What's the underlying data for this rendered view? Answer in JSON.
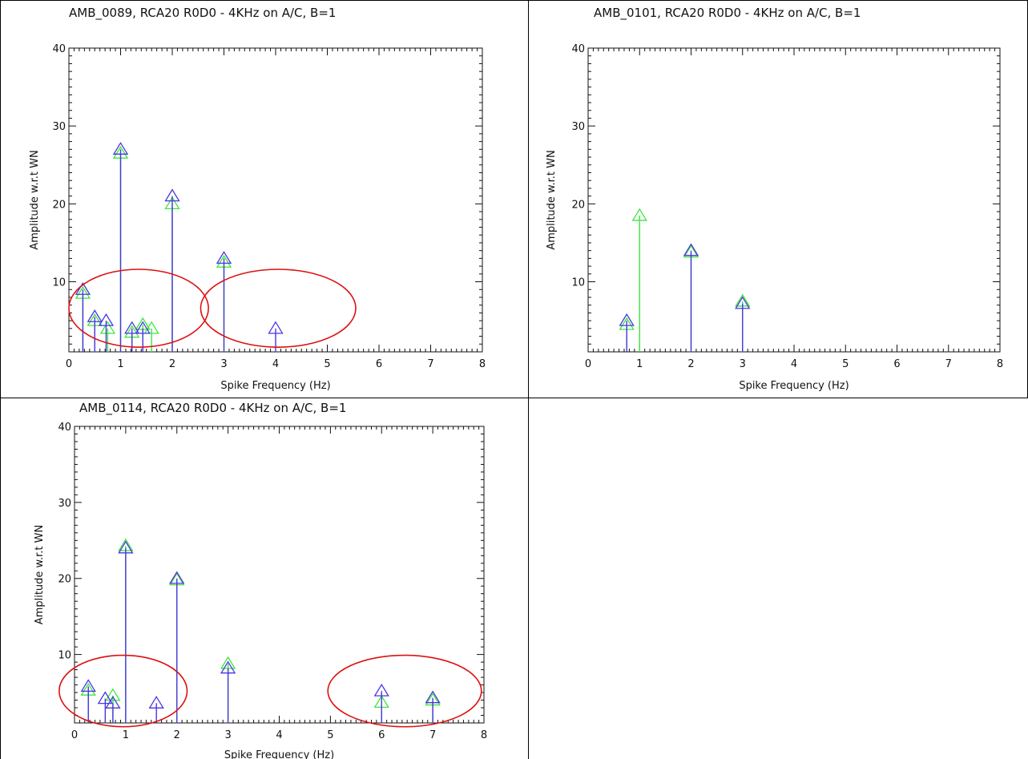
{
  "colors": {
    "series_blue": "#4a36e0",
    "series_green": "#3ee63e",
    "annotation_red": "#dd1111",
    "axis": "#111111"
  },
  "chart_data": [
    {
      "type": "stem",
      "title": "AMB_0089, RCA20 R0D0 - 4KHz on A/C, B=1",
      "xlabel": "Spike Frequency (Hz)",
      "ylabel": "Amplitude w.r.t WN",
      "xlim": [
        0,
        8
      ],
      "ylim": [
        1,
        40
      ],
      "xticks": [
        "0",
        "1",
        "2",
        "3",
        "4",
        "5",
        "6",
        "7",
        "8"
      ],
      "yticks": [
        "10",
        "20",
        "30",
        "40"
      ],
      "marker": "triangle",
      "series": [
        {
          "color": "#4a36e0",
          "points": [
            [
              0.27,
              9
            ],
            [
              0.5,
              5.5
            ],
            [
              0.72,
              5
            ],
            [
              1.0,
              27
            ],
            [
              1.22,
              4
            ],
            [
              1.43,
              4
            ],
            [
              2.0,
              21
            ],
            [
              3.0,
              13
            ],
            [
              4.0,
              4
            ]
          ]
        },
        {
          "color": "#3ee63e",
          "points": [
            [
              0.27,
              8.5
            ],
            [
              0.5,
              5
            ],
            [
              0.75,
              4
            ],
            [
              1.0,
              26.5
            ],
            [
              1.22,
              3.5
            ],
            [
              1.43,
              4.5
            ],
            [
              1.6,
              4
            ],
            [
              2.0,
              20
            ],
            [
              3.0,
              12.5
            ]
          ]
        }
      ],
      "annotations": [
        {
          "shape": "ellipse",
          "color": "#dd1111",
          "cx": 1.35,
          "cy": 6.6,
          "rx": 1.35,
          "ry": 5.0
        },
        {
          "shape": "ellipse",
          "color": "#dd1111",
          "cx": 4.05,
          "cy": 6.6,
          "rx": 1.5,
          "ry": 5.0
        }
      ]
    },
    {
      "type": "stem",
      "title": "AMB_0101, RCA20 R0D0 - 4KHz on A/C, B=1",
      "xlabel": "Spike Frequency (Hz)",
      "ylabel": "Amplitude w.r.t WN",
      "xlim": [
        0,
        8
      ],
      "ylim": [
        1,
        40
      ],
      "xticks": [
        "0",
        "1",
        "2",
        "3",
        "4",
        "5",
        "6",
        "7",
        "8"
      ],
      "yticks": [
        "10",
        "20",
        "30",
        "40"
      ],
      "marker": "triangle",
      "series": [
        {
          "color": "#4a36e0",
          "points": [
            [
              0.75,
              5
            ],
            [
              2.0,
              14
            ],
            [
              3.0,
              7.2
            ]
          ]
        },
        {
          "color": "#3ee63e",
          "points": [
            [
              0.75,
              4.5
            ],
            [
              1.0,
              18.5
            ],
            [
              2.0,
              13.8
            ],
            [
              3.0,
              7.5
            ]
          ]
        }
      ],
      "annotations": []
    },
    {
      "type": "stem",
      "title": "AMB_0114, RCA20 R0D0 - 4KHz on A/C, B=1",
      "xlabel": "Spike Frequency (Hz)",
      "ylabel": "Amplitude w.r.t WN",
      "xlim": [
        0,
        8
      ],
      "ylim": [
        1,
        40
      ],
      "xticks": [
        "0",
        "1",
        "2",
        "3",
        "4",
        "5",
        "6",
        "7",
        "8"
      ],
      "yticks": [
        "10",
        "20",
        "30",
        "40"
      ],
      "marker": "triangle",
      "series": [
        {
          "color": "#4a36e0",
          "points": [
            [
              0.27,
              5.8
            ],
            [
              0.6,
              4.2
            ],
            [
              0.75,
              3.6
            ],
            [
              1.0,
              24
            ],
            [
              1.6,
              3.6
            ],
            [
              2.0,
              20
            ],
            [
              3.0,
              8.2
            ],
            [
              6.0,
              5.2
            ],
            [
              7.0,
              4.3
            ]
          ]
        },
        {
          "color": "#3ee63e",
          "points": [
            [
              0.27,
              5.3
            ],
            [
              0.75,
              4.6
            ],
            [
              1.0,
              24.3
            ],
            [
              2.0,
              19.8
            ],
            [
              3.0,
              8.8
            ],
            [
              6.0,
              3.7
            ],
            [
              7.0,
              4.0
            ]
          ]
        }
      ],
      "annotations": [
        {
          "shape": "ellipse",
          "color": "#dd1111",
          "cx": 0.95,
          "cy": 5.2,
          "rx": 1.25,
          "ry": 4.7
        },
        {
          "shape": "ellipse",
          "color": "#dd1111",
          "cx": 6.45,
          "cy": 5.2,
          "rx": 1.5,
          "ry": 4.7
        }
      ]
    }
  ]
}
